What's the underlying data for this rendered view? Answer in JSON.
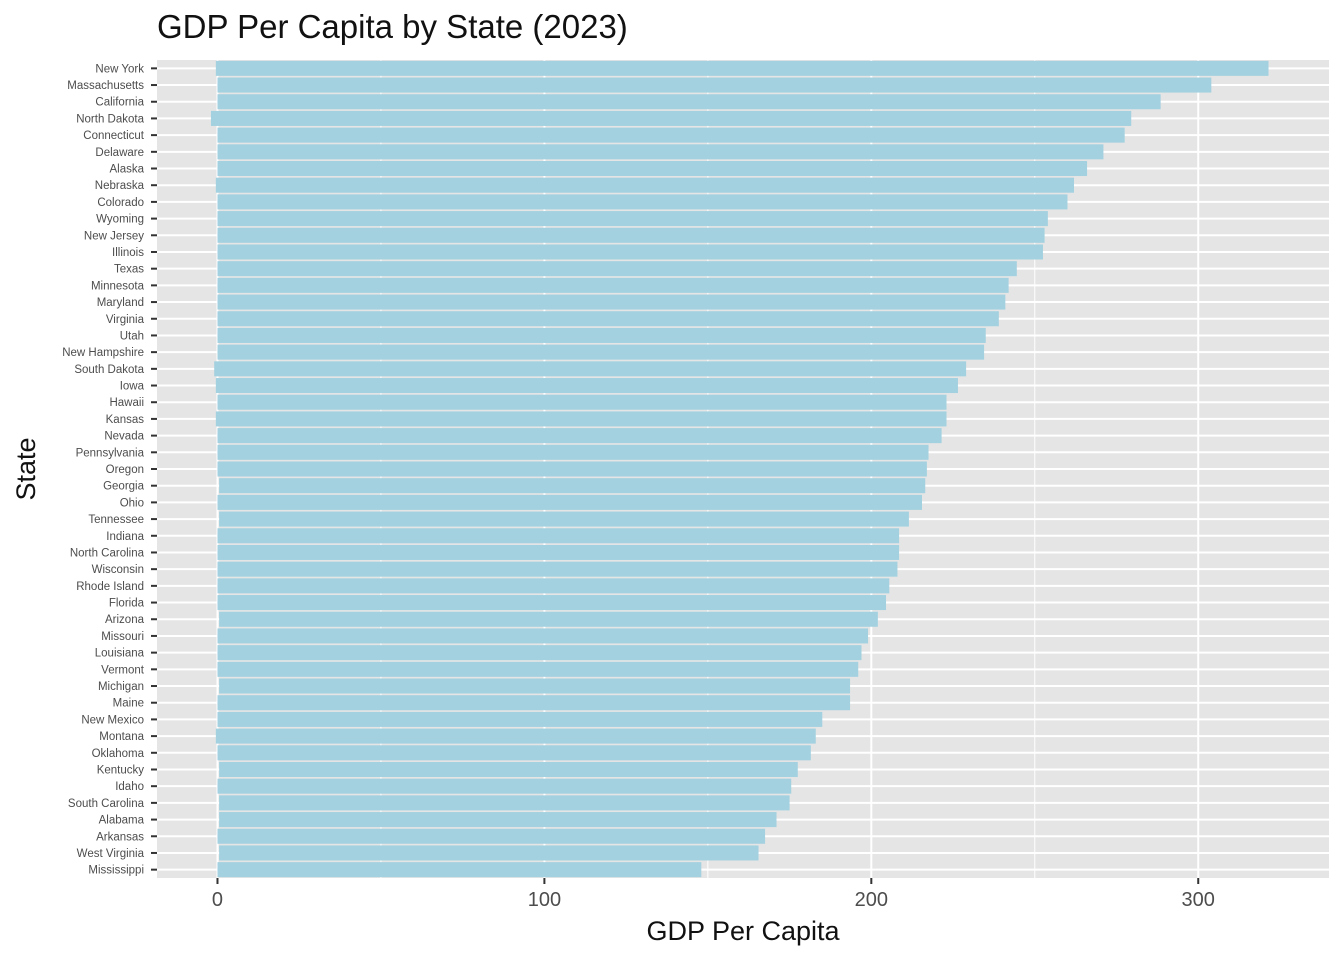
{
  "chart_data": {
    "type": "bar",
    "orientation": "horizontal",
    "title": "GDP Per Capita by State (2023)",
    "xlabel": "GDP Per Capita",
    "ylabel": "State",
    "xlim": [
      -18.5,
      340
    ],
    "x_ticks": [
      0,
      100,
      200,
      300
    ],
    "grid": true,
    "colors": {
      "bar": "#a3d1e0",
      "panel": "#e5e5e5",
      "grid": "#ffffff"
    },
    "categories": [
      "New York",
      "Massachusetts",
      "California",
      "North Dakota",
      "Connecticut",
      "Delaware",
      "Alaska",
      "Nebraska",
      "Colorado",
      "Wyoming",
      "New Jersey",
      "Illinois",
      "Texas",
      "Minnesota",
      "Maryland",
      "Virginia",
      "Utah",
      "New Hampshire",
      "South Dakota",
      "Iowa",
      "Hawaii",
      "Kansas",
      "Nevada",
      "Pennsylvania",
      "Oregon",
      "Georgia",
      "Ohio",
      "Tennessee",
      "Indiana",
      "North Carolina",
      "Wisconsin",
      "Rhode Island",
      "Florida",
      "Arizona",
      "Missouri",
      "Louisiana",
      "Vermont",
      "Michigan",
      "Maine",
      "New Mexico",
      "Montana",
      "Oklahoma",
      "Kentucky",
      "Idaho",
      "South Carolina",
      "Alabama",
      "Arkansas",
      "West Virginia",
      "Mississippi"
    ],
    "starts": [
      -0.5,
      0,
      0,
      -2,
      0,
      0,
      0,
      -0.5,
      0,
      0,
      0,
      0,
      0,
      0,
      0,
      0,
      0,
      0,
      -1,
      -0.5,
      0,
      -0.5,
      0,
      0,
      0,
      0.5,
      0,
      0.5,
      0,
      0,
      0,
      0,
      0,
      0.5,
      0,
      0,
      0,
      0.5,
      0,
      0,
      -0.5,
      0,
      0.5,
      0,
      0.5,
      0.5,
      0,
      0.5,
      0
    ],
    "values": [
      321.5,
      304,
      288.5,
      279.5,
      277.5,
      271,
      266,
      262,
      260,
      254,
      253,
      252.5,
      244.5,
      242,
      241,
      239,
      235,
      234.5,
      229,
      226.5,
      223,
      223,
      221.5,
      217.5,
      217,
      216.5,
      215.5,
      211.5,
      208.5,
      208.5,
      208,
      205.5,
      204.5,
      202,
      199,
      197,
      196,
      193.5,
      193.5,
      185,
      183,
      181.5,
      177.5,
      175.5,
      175,
      171,
      167.5,
      165.5,
      148
    ]
  }
}
